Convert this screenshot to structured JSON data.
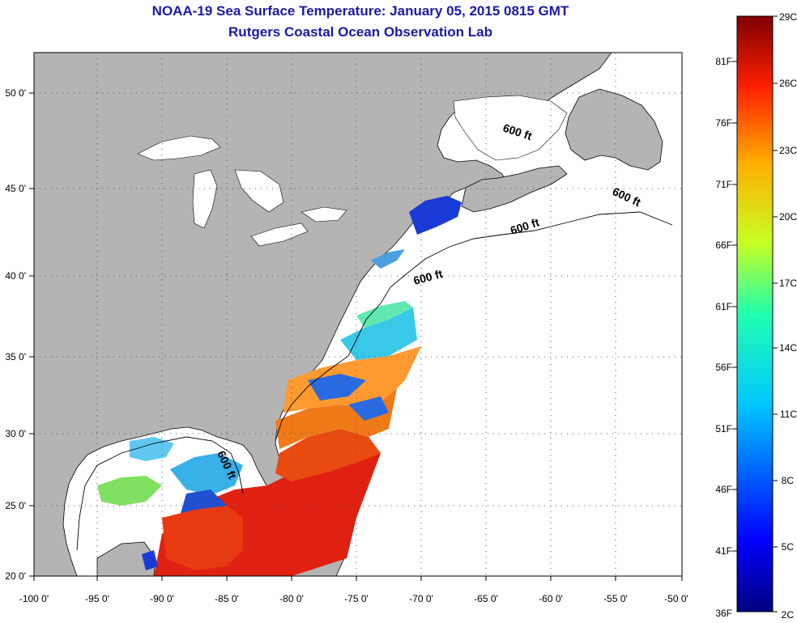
{
  "header": {
    "title": "NOAA-19 Sea Surface Temperature:  January 05, 2015 0815 GMT",
    "subtitle": "Rutgers Coastal Ocean Observation Lab"
  },
  "map": {
    "x_ticks": [
      "-100 0'",
      "-95 0'",
      "-90 0'",
      "-85 0'",
      "-80 0'",
      "-75 0'",
      "-70 0'",
      "-65 0'",
      "-60 0'",
      "-55 0'",
      "-50 0'"
    ],
    "y_ticks": [
      "50 0'",
      "45 0'",
      "40 0'",
      "35 0'",
      "30 0'",
      "25 0'",
      "20 0'"
    ],
    "contour_labels": [
      "600 ft",
      "600 ft",
      "600 ft",
      "600 ft",
      "600 ft"
    ],
    "colors": {
      "land": "#b4b4b4",
      "ocean": "#ffffff",
      "grid": "#555555",
      "sst_cold": "#1040e0",
      "sst_warm": "#e02010"
    }
  },
  "colorbar": {
    "celsius_labels": [
      "29C",
      "26C",
      "23C",
      "20C",
      "17C",
      "14C",
      "11C",
      "8C",
      "5C",
      "2C"
    ],
    "fahrenheit_labels": [
      "81F",
      "76F",
      "71F",
      "66F",
      "61F",
      "56F",
      "51F",
      "46F",
      "41F",
      "36F"
    ],
    "colormap": "jet"
  }
}
